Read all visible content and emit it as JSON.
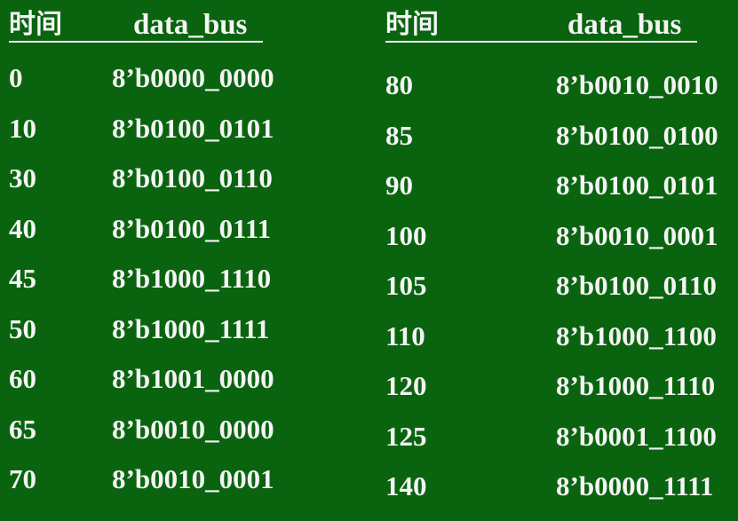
{
  "left_table": {
    "header_time": "时间",
    "header_bus": "data_bus",
    "rows": [
      {
        "time": "0",
        "value": "8’b0000_0000"
      },
      {
        "time": "10",
        "value": "8’b0100_0101"
      },
      {
        "time": "30",
        "value": "8’b0100_0110"
      },
      {
        "time": "40",
        "value": "8’b0100_0111"
      },
      {
        "time": "45",
        "value": "8’b1000_1110"
      },
      {
        "time": "50",
        "value": "8’b1000_1111"
      },
      {
        "time": "60",
        "value": "8’b1001_0000"
      },
      {
        "time": "65",
        "value": "8’b0010_0000"
      },
      {
        "time": "70",
        "value": "8’b0010_0001"
      }
    ]
  },
  "right_table": {
    "header_time": "时间",
    "header_bus": "data_bus",
    "rows": [
      {
        "time": "80",
        "value": "8’b0010_0010"
      },
      {
        "time": "85",
        "value": "8’b0100_0100"
      },
      {
        "time": "90",
        "value": "8’b0100_0101"
      },
      {
        "time": "100",
        "value": "8’b0010_0001"
      },
      {
        "time": "105",
        "value": "8’b0100_0110"
      },
      {
        "time": "110",
        "value": "8’b1000_1100"
      },
      {
        "time": "120",
        "value": "8’b1000_1110"
      },
      {
        "time": "125",
        "value": "8’b0001_1100"
      },
      {
        "time": "140",
        "value": "8’b0000_1111"
      }
    ]
  },
  "colors": {
    "background": "#0a640f",
    "text": "#f4f4f4"
  }
}
